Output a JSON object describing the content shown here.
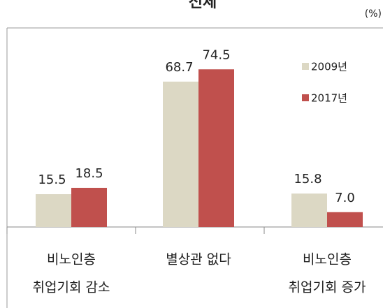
{
  "chart_data": {
    "type": "bar",
    "title": "전체",
    "unit": "(%)",
    "categories": [
      [
        "비노인층",
        "취업기회 감소"
      ],
      [
        "별상관 없다"
      ],
      [
        "비노인층",
        "취업기회 증가"
      ]
    ],
    "series": [
      {
        "name": "2009년",
        "color": "#dcd8c4",
        "values": [
          15.5,
          68.7,
          15.8
        ]
      },
      {
        "name": "2017년",
        "color": "#c0504d",
        "values": [
          18.5,
          74.5,
          7.0
        ],
        "value_labels": [
          "18.5",
          "74.5",
          "7.0"
        ]
      }
    ],
    "legend": "top-right"
  }
}
